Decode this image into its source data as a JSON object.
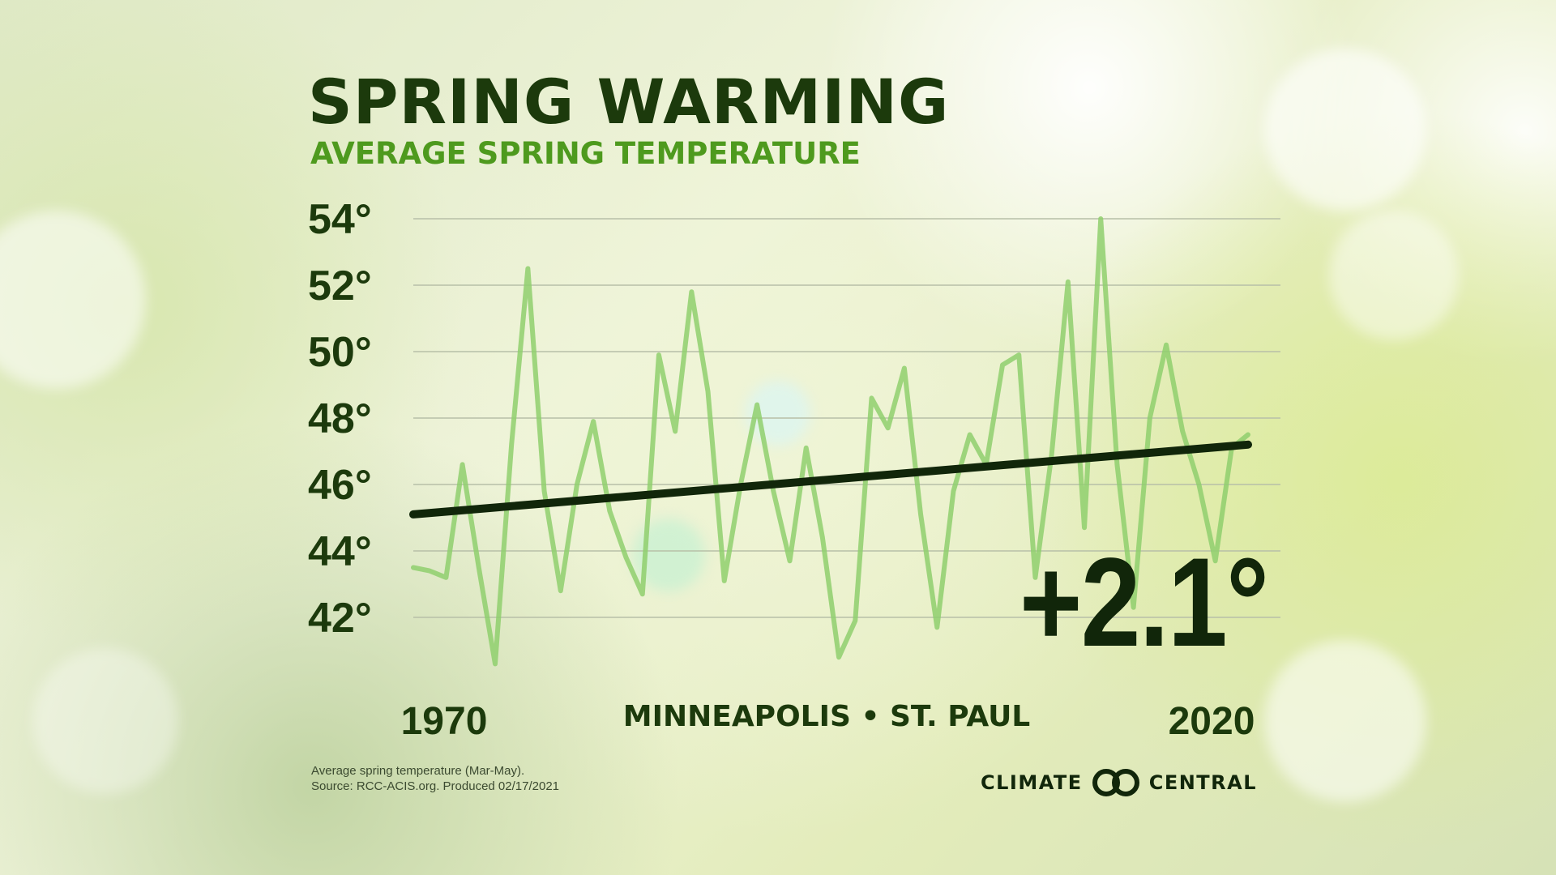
{
  "title": "SPRING WARMING",
  "subtitle": "AVERAGE SPRING TEMPERATURE",
  "location": "MINNEAPOLIS • ST. PAUL",
  "change": "+2.1°",
  "x_start_label": "1970",
  "x_end_label": "2020",
  "footnote": {
    "line1": "Average spring temperature (Mar-May).",
    "line2": "Source: RCC-ACIS.org. Produced 02/17/2021"
  },
  "logo": {
    "left": "CLIMATE",
    "right": "CENTRAL"
  },
  "colors": {
    "dark": "#1c3a0c",
    "accent": "#4e9a1e",
    "line": "#8fcf6d",
    "trend": "#11260a"
  },
  "chart_data": {
    "type": "line",
    "title": "SPRING WARMING",
    "subtitle": "AVERAGE SPRING TEMPERATURE",
    "xlabel": "",
    "ylabel": "",
    "xlim": [
      1970,
      2021
    ],
    "ylim": [
      40,
      54
    ],
    "yticks": [
      42,
      44,
      46,
      48,
      50,
      52,
      54
    ],
    "ytick_labels": [
      "42°",
      "44°",
      "46°",
      "48°",
      "50°",
      "52°",
      "54°"
    ],
    "xtick_labels": [
      "1970",
      "2020"
    ],
    "grid": true,
    "series": [
      {
        "name": "Average spring temperature",
        "x": [
          1970,
          1971,
          1972,
          1973,
          1974,
          1975,
          1976,
          1977,
          1978,
          1979,
          1980,
          1981,
          1982,
          1983,
          1984,
          1985,
          1986,
          1987,
          1988,
          1989,
          1990,
          1991,
          1992,
          1993,
          1994,
          1995,
          1996,
          1997,
          1998,
          1999,
          2000,
          2001,
          2002,
          2003,
          2004,
          2005,
          2006,
          2007,
          2008,
          2009,
          2010,
          2011,
          2012,
          2013,
          2014,
          2015,
          2016,
          2017,
          2018,
          2019,
          2020,
          2021
        ],
        "values": [
          43.5,
          43.4,
          43.2,
          46.6,
          43.5,
          40.6,
          47.2,
          52.5,
          45.8,
          42.8,
          46.0,
          47.9,
          45.2,
          43.8,
          42.7,
          49.9,
          47.6,
          51.8,
          48.8,
          43.1,
          46.0,
          48.4,
          45.8,
          43.7,
          47.1,
          44.4,
          40.8,
          41.9,
          48.6,
          47.7,
          49.5,
          45.1,
          41.7,
          45.8,
          47.5,
          46.6,
          49.6,
          49.9,
          43.2,
          46.9,
          52.1,
          44.7,
          54.0,
          46.6,
          42.3,
          48.0,
          50.2,
          47.6,
          46.0,
          43.7,
          47.1,
          47.5
        ]
      },
      {
        "name": "Trend",
        "x": [
          1970,
          2021
        ],
        "values": [
          45.1,
          47.2
        ]
      }
    ],
    "annotations": [
      "+2.1°",
      "MINNEAPOLIS • ST. PAUL"
    ]
  }
}
